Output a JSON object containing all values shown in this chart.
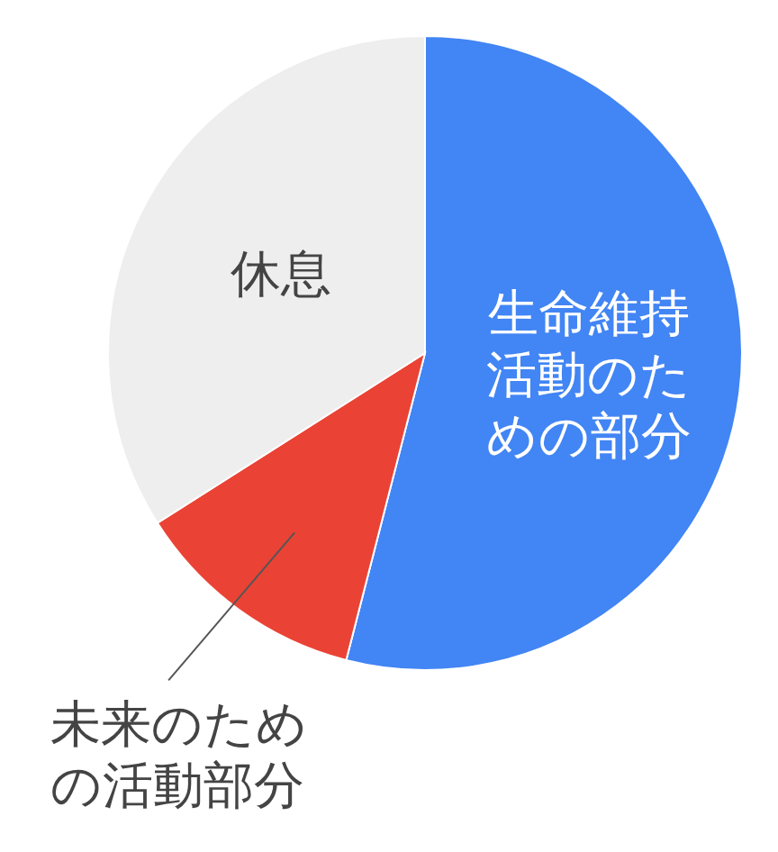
{
  "chart_data": {
    "type": "pie",
    "categories": [
      "生命維持活動のための部分",
      "未来のための活動部分",
      "休息"
    ],
    "values": [
      54,
      12,
      34
    ],
    "colors": [
      "#4285f4",
      "#ea4335",
      "#eeeeee"
    ]
  }
}
